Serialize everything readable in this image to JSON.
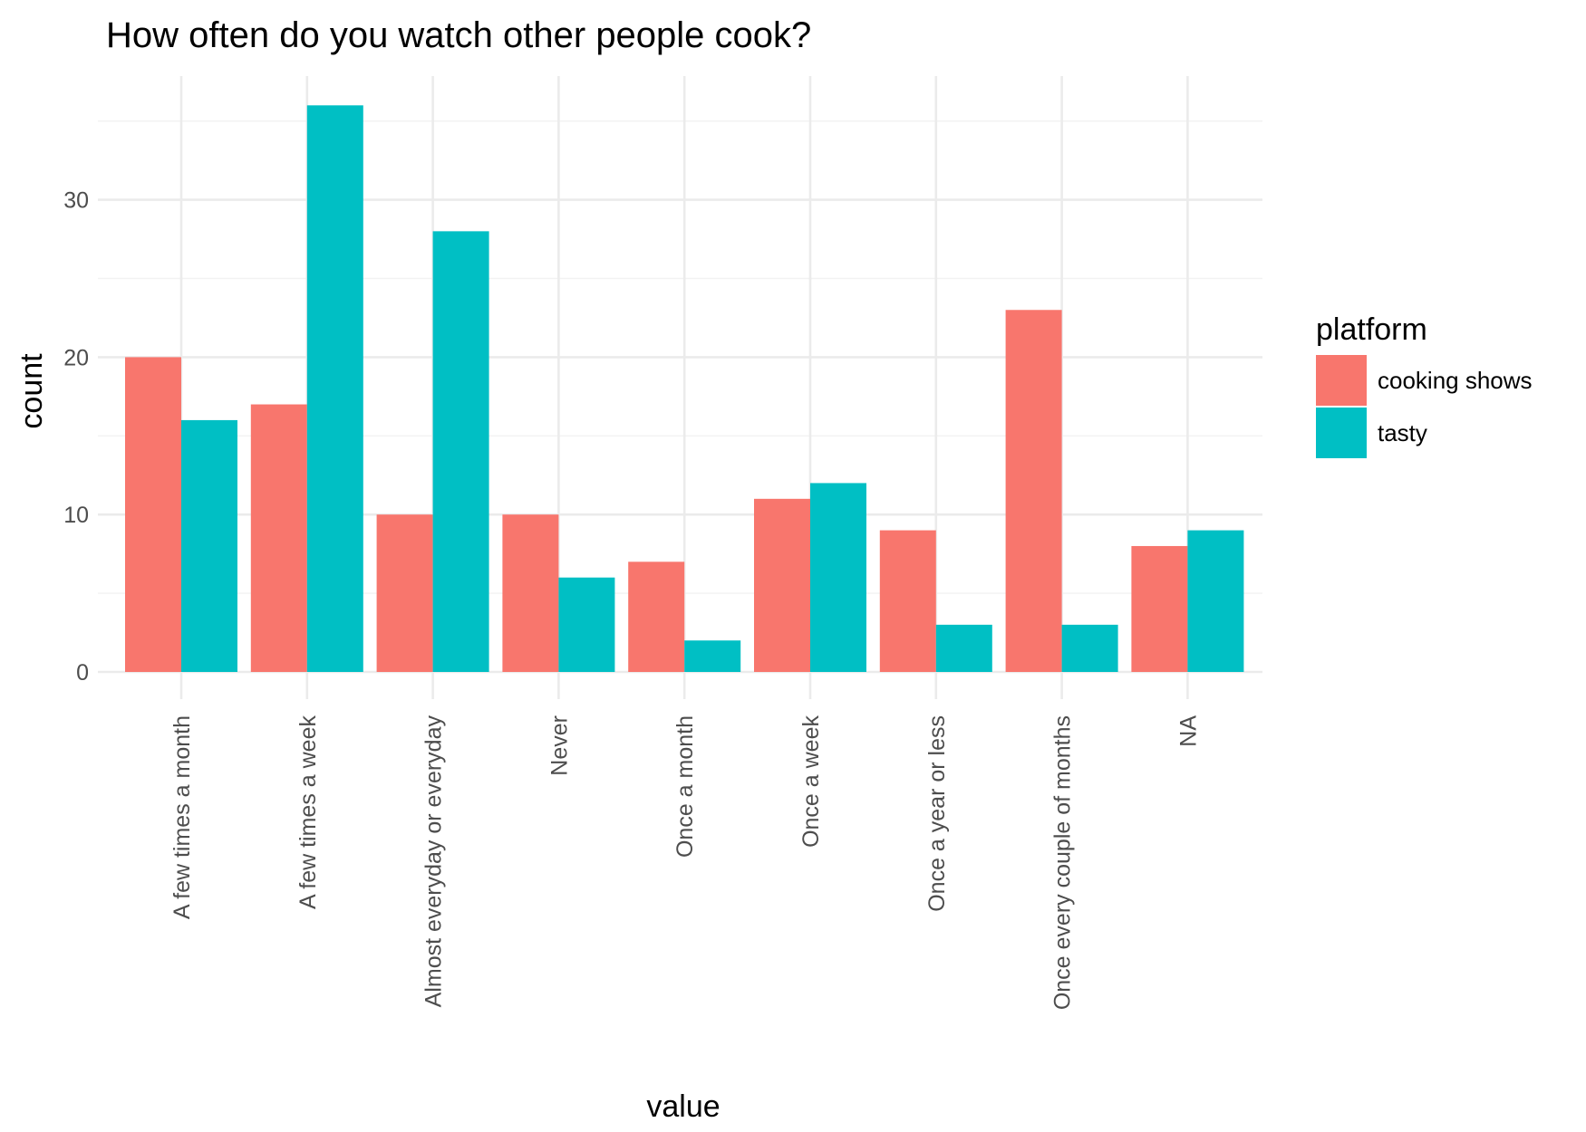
{
  "chart_data": {
    "type": "bar",
    "title": "How often do you watch other people cook?",
    "xlabel": "value",
    "ylabel": "count",
    "categories": [
      "A few times a month",
      "A few times a week",
      "Almost everyday or everyday",
      "Never",
      "Once a month",
      "Once a week",
      "Once a year or less",
      "Once every couple of months",
      "NA"
    ],
    "series": [
      {
        "name": "cooking shows",
        "color": "#F8766D",
        "values": [
          20,
          17,
          10,
          10,
          7,
          11,
          9,
          23,
          8
        ]
      },
      {
        "name": "tasty",
        "color": "#00BFC4",
        "values": [
          16,
          36,
          28,
          6,
          2,
          12,
          3,
          3,
          9
        ]
      }
    ],
    "ylim": [
      0,
      36
    ],
    "yticks": [
      0,
      10,
      20,
      30
    ],
    "grid": true,
    "legend": {
      "title": "platform",
      "placement": "right"
    }
  }
}
